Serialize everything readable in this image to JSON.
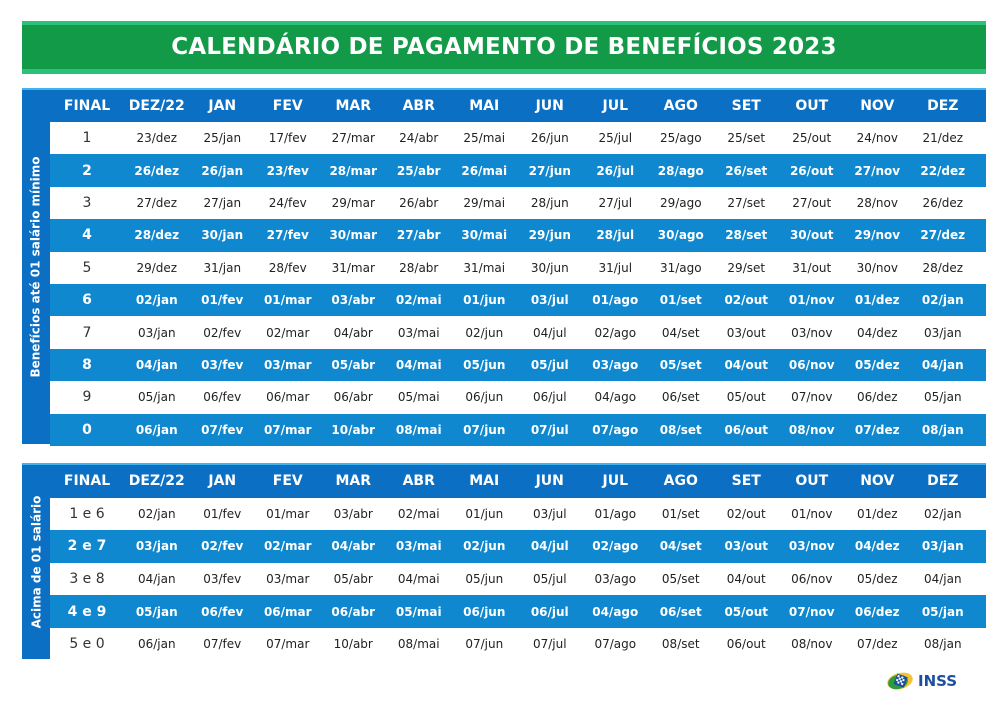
{
  "title": "CALENDÁRIO DE PAGAMENTO DE BENEFÍCIOS 2023",
  "columns": [
    "FINAL",
    "DEZ/22",
    "JAN",
    "FEV",
    "MAR",
    "ABR",
    "MAI",
    "JUN",
    "JUL",
    "AGO",
    "SET",
    "OUT",
    "NOV",
    "DEZ"
  ],
  "table1": {
    "side_label": "Benefícios até 01 salário mínimo",
    "rows": [
      {
        "final": "1",
        "dates": [
          "23/dez",
          "25/jan",
          "17/fev",
          "27/mar",
          "24/abr",
          "25/mai",
          "26/jun",
          "25/jul",
          "25/ago",
          "25/set",
          "25/out",
          "24/nov",
          "21/dez"
        ]
      },
      {
        "final": "2",
        "dates": [
          "26/dez",
          "26/jan",
          "23/fev",
          "28/mar",
          "25/abr",
          "26/mai",
          "27/jun",
          "26/jul",
          "28/ago",
          "26/set",
          "26/out",
          "27/nov",
          "22/dez"
        ]
      },
      {
        "final": "3",
        "dates": [
          "27/dez",
          "27/jan",
          "24/fev",
          "29/mar",
          "26/abr",
          "29/mai",
          "28/jun",
          "27/jul",
          "29/ago",
          "27/set",
          "27/out",
          "28/nov",
          "26/dez"
        ]
      },
      {
        "final": "4",
        "dates": [
          "28/dez",
          "30/jan",
          "27/fev",
          "30/mar",
          "27/abr",
          "30/mai",
          "29/jun",
          "28/jul",
          "30/ago",
          "28/set",
          "30/out",
          "29/nov",
          "27/dez"
        ]
      },
      {
        "final": "5",
        "dates": [
          "29/dez",
          "31/jan",
          "28/fev",
          "31/mar",
          "28/abr",
          "31/mai",
          "30/jun",
          "31/jul",
          "31/ago",
          "29/set",
          "31/out",
          "30/nov",
          "28/dez"
        ]
      },
      {
        "final": "6",
        "dates": [
          "02/jan",
          "01/fev",
          "01/mar",
          "03/abr",
          "02/mai",
          "01/jun",
          "03/jul",
          "01/ago",
          "01/set",
          "02/out",
          "01/nov",
          "01/dez",
          "02/jan"
        ]
      },
      {
        "final": "7",
        "dates": [
          "03/jan",
          "02/fev",
          "02/mar",
          "04/abr",
          "03/mai",
          "02/jun",
          "04/jul",
          "02/ago",
          "04/set",
          "03/out",
          "03/nov",
          "04/dez",
          "03/jan"
        ]
      },
      {
        "final": "8",
        "dates": [
          "04/jan",
          "03/fev",
          "03/mar",
          "05/abr",
          "04/mai",
          "05/jun",
          "05/jul",
          "03/ago",
          "05/set",
          "04/out",
          "06/nov",
          "05/dez",
          "04/jan"
        ]
      },
      {
        "final": "9",
        "dates": [
          "05/jan",
          "06/fev",
          "06/mar",
          "06/abr",
          "05/mai",
          "06/jun",
          "06/jul",
          "04/ago",
          "06/set",
          "05/out",
          "07/nov",
          "06/dez",
          "05/jan"
        ]
      },
      {
        "final": "0",
        "dates": [
          "06/jan",
          "07/fev",
          "07/mar",
          "10/abr",
          "08/mai",
          "07/jun",
          "07/jul",
          "07/ago",
          "08/set",
          "06/out",
          "08/nov",
          "07/dez",
          "08/jan"
        ]
      }
    ]
  },
  "table2": {
    "side_label": "Acima de 01 salário",
    "rows": [
      {
        "final": "1 e 6",
        "dates": [
          "02/jan",
          "01/fev",
          "01/mar",
          "03/abr",
          "02/mai",
          "01/jun",
          "03/jul",
          "01/ago",
          "01/set",
          "02/out",
          "01/nov",
          "01/dez",
          "02/jan"
        ]
      },
      {
        "final": "2 e 7",
        "dates": [
          "03/jan",
          "02/fev",
          "02/mar",
          "04/abr",
          "03/mai",
          "02/jun",
          "04/jul",
          "02/ago",
          "04/set",
          "03/out",
          "03/nov",
          "04/dez",
          "03/jan"
        ]
      },
      {
        "final": "3 e 8",
        "dates": [
          "04/jan",
          "03/fev",
          "03/mar",
          "05/abr",
          "04/mai",
          "05/jun",
          "05/jul",
          "03/ago",
          "05/set",
          "04/out",
          "06/nov",
          "05/dez",
          "04/jan"
        ]
      },
      {
        "final": "4 e 9",
        "dates": [
          "05/jan",
          "06/fev",
          "06/mar",
          "06/abr",
          "05/mai",
          "06/jun",
          "06/jul",
          "04/ago",
          "06/set",
          "05/out",
          "07/nov",
          "06/dez",
          "05/jan"
        ]
      },
      {
        "final": "5 e 0",
        "dates": [
          "06/jan",
          "07/fev",
          "07/mar",
          "10/abr",
          "08/mai",
          "07/jun",
          "07/jul",
          "07/ago",
          "08/set",
          "06/out",
          "08/nov",
          "07/dez",
          "08/jan"
        ]
      }
    ]
  },
  "logo": {
    "text": "INSS",
    "icon": "inss-logo-icon"
  },
  "colors": {
    "title_green": "#129a48",
    "title_border": "#2cc07a",
    "header_blue": "#0b6fc4",
    "row_blue": "#0f88d0",
    "logo_blue": "#1d4fa0"
  }
}
